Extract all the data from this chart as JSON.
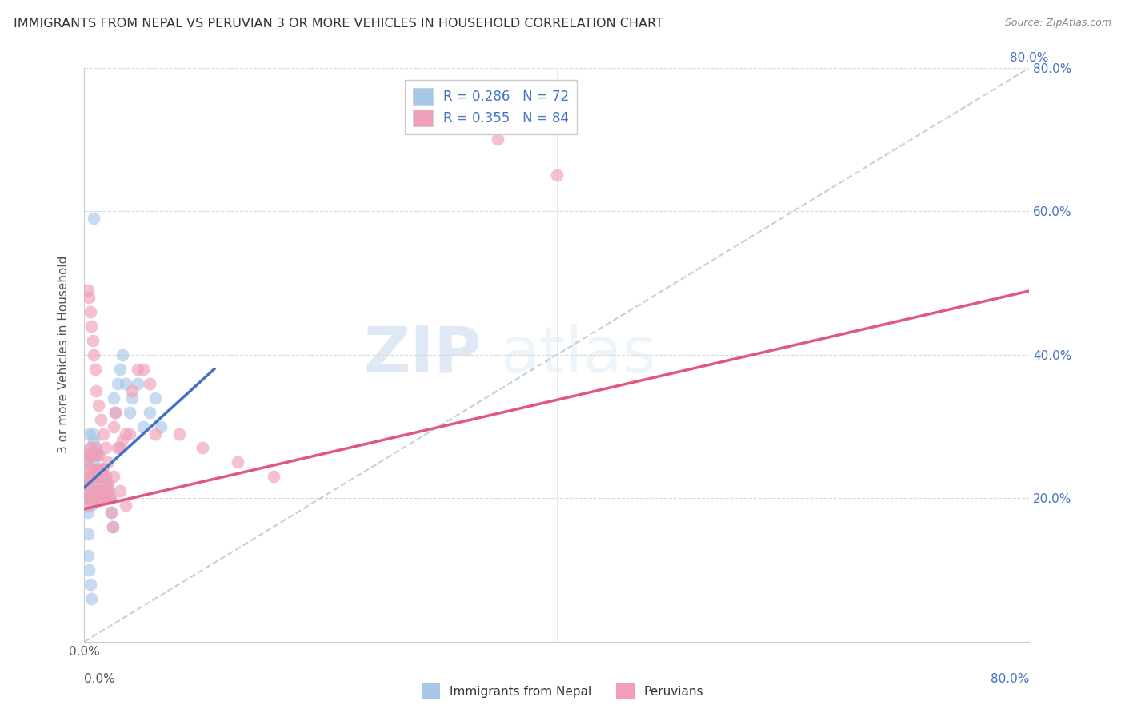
{
  "title": "IMMIGRANTS FROM NEPAL VS PERUVIAN 3 OR MORE VEHICLES IN HOUSEHOLD CORRELATION CHART",
  "source": "Source: ZipAtlas.com",
  "ylabel": "3 or more Vehicles in Household",
  "xlim": [
    0.0,
    0.8
  ],
  "ylim": [
    0.0,
    0.8
  ],
  "legend_label1": "Immigrants from Nepal",
  "legend_label2": "Peruvians",
  "R1": 0.286,
  "N1": 72,
  "R2": 0.355,
  "N2": 84,
  "color1": "#a8c8e8",
  "color2": "#f0a0b8",
  "color1_line": "#4472c4",
  "color2_line": "#e05880",
  "watermark_zip": "ZIP",
  "watermark_atlas": "atlas",
  "nepal_x": [
    0.001,
    0.002,
    0.002,
    0.003,
    0.003,
    0.003,
    0.004,
    0.004,
    0.004,
    0.004,
    0.005,
    0.005,
    0.005,
    0.006,
    0.006,
    0.006,
    0.007,
    0.007,
    0.007,
    0.007,
    0.008,
    0.008,
    0.008,
    0.008,
    0.009,
    0.009,
    0.009,
    0.01,
    0.01,
    0.01,
    0.011,
    0.011,
    0.012,
    0.012,
    0.012,
    0.013,
    0.013,
    0.014,
    0.014,
    0.015,
    0.015,
    0.016,
    0.016,
    0.017,
    0.018,
    0.018,
    0.019,
    0.02,
    0.02,
    0.021,
    0.022,
    0.023,
    0.024,
    0.025,
    0.026,
    0.028,
    0.03,
    0.032,
    0.035,
    0.038,
    0.04,
    0.045,
    0.05,
    0.055,
    0.06,
    0.065,
    0.003,
    0.003,
    0.004,
    0.005,
    0.006,
    0.008
  ],
  "nepal_y": [
    0.22,
    0.2,
    0.25,
    0.18,
    0.22,
    0.26,
    0.2,
    0.23,
    0.26,
    0.29,
    0.21,
    0.24,
    0.27,
    0.19,
    0.22,
    0.26,
    0.2,
    0.23,
    0.26,
    0.29,
    0.2,
    0.22,
    0.25,
    0.28,
    0.21,
    0.24,
    0.27,
    0.2,
    0.23,
    0.26,
    0.21,
    0.24,
    0.2,
    0.23,
    0.26,
    0.21,
    0.24,
    0.2,
    0.23,
    0.21,
    0.24,
    0.2,
    0.23,
    0.22,
    0.2,
    0.23,
    0.21,
    0.2,
    0.22,
    0.21,
    0.2,
    0.18,
    0.16,
    0.34,
    0.32,
    0.36,
    0.38,
    0.4,
    0.36,
    0.32,
    0.34,
    0.36,
    0.3,
    0.32,
    0.34,
    0.3,
    0.15,
    0.12,
    0.1,
    0.08,
    0.06,
    0.59
  ],
  "peru_x": [
    0.001,
    0.002,
    0.002,
    0.003,
    0.003,
    0.003,
    0.004,
    0.004,
    0.004,
    0.005,
    0.005,
    0.005,
    0.006,
    0.006,
    0.006,
    0.007,
    0.007,
    0.007,
    0.008,
    0.008,
    0.008,
    0.009,
    0.009,
    0.009,
    0.01,
    0.01,
    0.01,
    0.011,
    0.011,
    0.012,
    0.012,
    0.012,
    0.013,
    0.013,
    0.014,
    0.014,
    0.015,
    0.015,
    0.016,
    0.016,
    0.017,
    0.018,
    0.018,
    0.019,
    0.02,
    0.02,
    0.021,
    0.022,
    0.023,
    0.024,
    0.025,
    0.026,
    0.028,
    0.03,
    0.032,
    0.035,
    0.038,
    0.04,
    0.045,
    0.05,
    0.055,
    0.06,
    0.08,
    0.1,
    0.13,
    0.16,
    0.003,
    0.004,
    0.005,
    0.006,
    0.007,
    0.008,
    0.009,
    0.01,
    0.012,
    0.014,
    0.016,
    0.018,
    0.02,
    0.025,
    0.03,
    0.035,
    0.35,
    0.4
  ],
  "peru_y": [
    0.22,
    0.21,
    0.25,
    0.19,
    0.22,
    0.26,
    0.2,
    0.23,
    0.26,
    0.21,
    0.24,
    0.27,
    0.2,
    0.23,
    0.26,
    0.2,
    0.23,
    0.26,
    0.2,
    0.23,
    0.26,
    0.21,
    0.24,
    0.27,
    0.2,
    0.23,
    0.26,
    0.21,
    0.24,
    0.2,
    0.23,
    0.26,
    0.21,
    0.24,
    0.2,
    0.23,
    0.21,
    0.24,
    0.2,
    0.23,
    0.22,
    0.2,
    0.23,
    0.21,
    0.2,
    0.22,
    0.21,
    0.2,
    0.18,
    0.16,
    0.3,
    0.32,
    0.27,
    0.27,
    0.28,
    0.29,
    0.29,
    0.35,
    0.38,
    0.38,
    0.36,
    0.29,
    0.29,
    0.27,
    0.25,
    0.23,
    0.49,
    0.48,
    0.46,
    0.44,
    0.42,
    0.4,
    0.38,
    0.35,
    0.33,
    0.31,
    0.29,
    0.27,
    0.25,
    0.23,
    0.21,
    0.19,
    0.7,
    0.65
  ],
  "diag_line_x": [
    0.0,
    0.8
  ],
  "diag_line_y": [
    0.0,
    0.8
  ],
  "nepal_line_x": [
    0.0,
    0.11
  ],
  "nepal_line_intercept": 0.215,
  "nepal_line_slope": 1.5,
  "peru_line_x": [
    0.0,
    0.8
  ],
  "peru_line_intercept": 0.185,
  "peru_line_slope": 0.38
}
